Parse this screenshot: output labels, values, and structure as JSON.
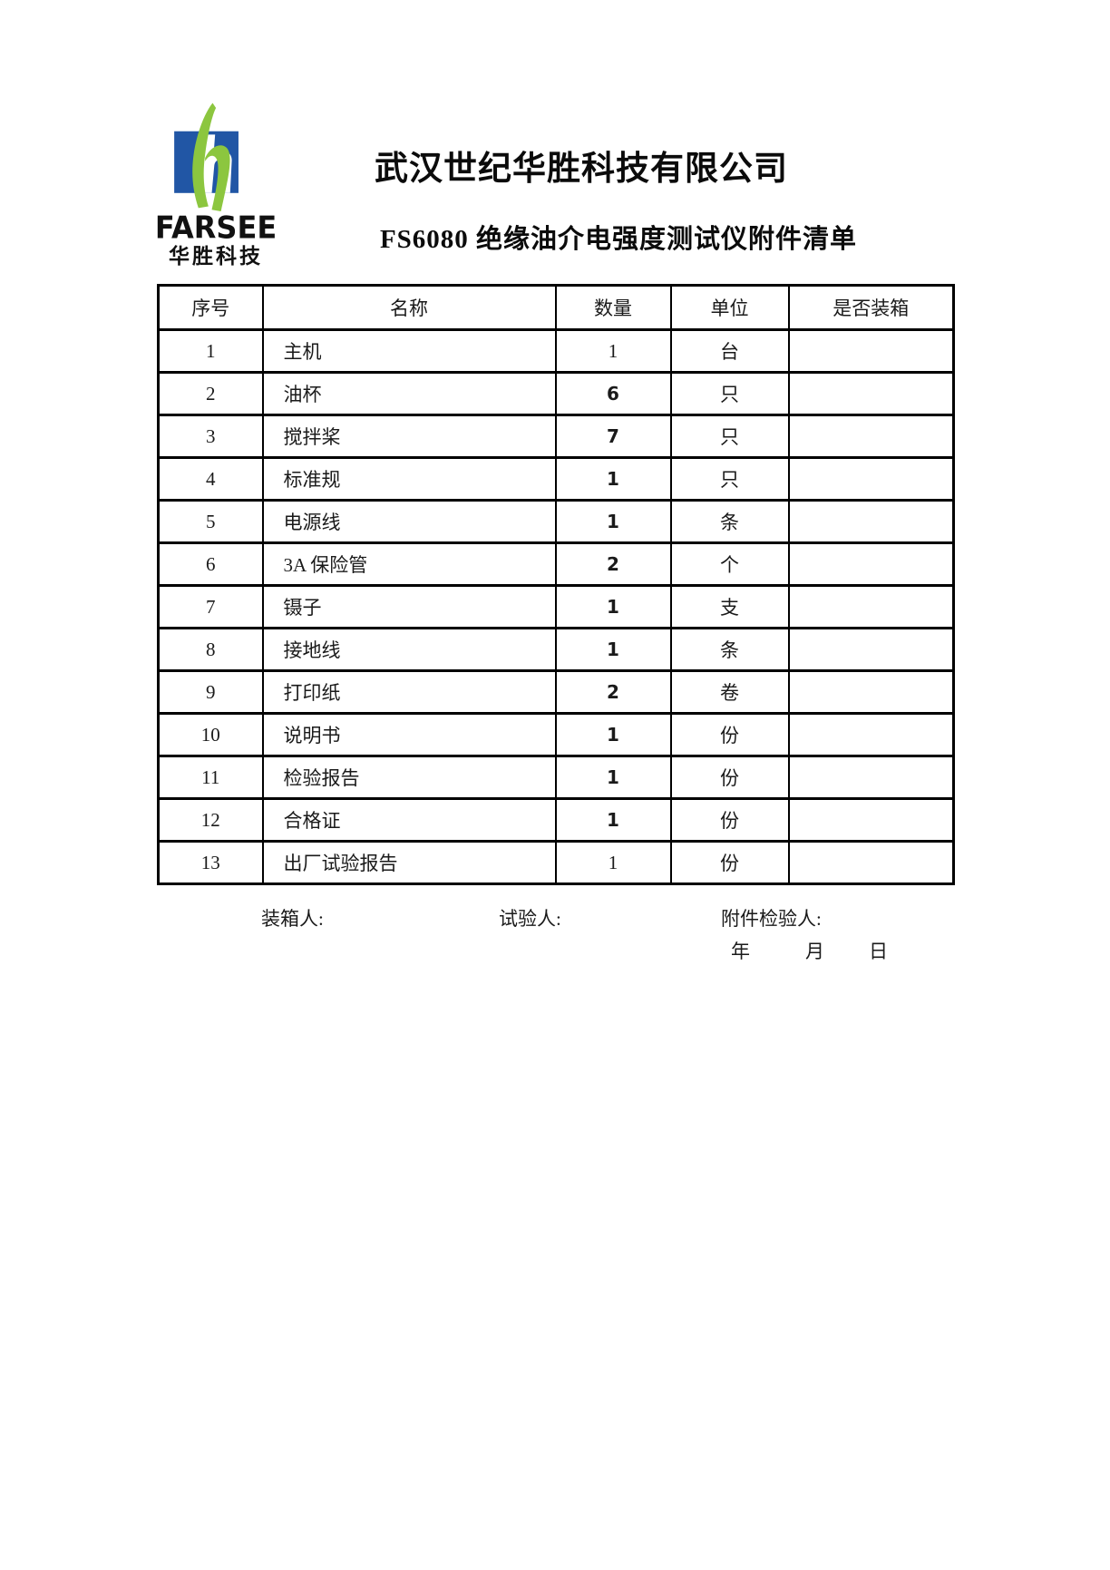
{
  "logo": {
    "brand_en": "FARSEE",
    "brand_cn": "华胜科技",
    "colors": {
      "blue": "#2156a5",
      "green": "#8cc63f"
    }
  },
  "header": {
    "company_title": "武汉世纪华胜科技有限公司",
    "doc_title": "FS6080 绝缘油介电强度测试仪附件清单"
  },
  "table": {
    "columns": [
      "序号",
      "名称",
      "数量",
      "单位",
      "是否装箱"
    ],
    "rows": [
      {
        "no": "1",
        "name": "主机",
        "qty": "1",
        "unit": "台",
        "packed": "",
        "qty_bold": false
      },
      {
        "no": "2",
        "name": "油杯",
        "qty": "6",
        "unit": "只",
        "packed": "",
        "qty_bold": true
      },
      {
        "no": "3",
        "name": "搅拌桨",
        "qty": "7",
        "unit": "只",
        "packed": "",
        "qty_bold": true
      },
      {
        "no": "4",
        "name": "标准规",
        "qty": "1",
        "unit": "只",
        "packed": "",
        "qty_bold": true
      },
      {
        "no": "5",
        "name": "电源线",
        "qty": "1",
        "unit": "条",
        "packed": "",
        "qty_bold": true
      },
      {
        "no": "6",
        "name": "3A 保险管",
        "qty": "2",
        "unit": "个",
        "packed": "",
        "qty_bold": true
      },
      {
        "no": "7",
        "name": "镊子",
        "qty": "1",
        "unit": "支",
        "packed": "",
        "qty_bold": true
      },
      {
        "no": "8",
        "name": "接地线",
        "qty": "1",
        "unit": "条",
        "packed": "",
        "qty_bold": true
      },
      {
        "no": "9",
        "name": "打印纸",
        "qty": "2",
        "unit": "卷",
        "packed": "",
        "qty_bold": true
      },
      {
        "no": "10",
        "name": "说明书",
        "qty": "1",
        "unit": "份",
        "packed": "",
        "qty_bold": true
      },
      {
        "no": "11",
        "name": "检验报告",
        "qty": "1",
        "unit": "份",
        "packed": "",
        "qty_bold": true
      },
      {
        "no": "12",
        "name": "合格证",
        "qty": "1",
        "unit": "份",
        "packed": "",
        "qty_bold": true
      },
      {
        "no": "13",
        "name": "出厂试验报告",
        "qty": "1",
        "unit": "份",
        "packed": "",
        "qty_bold": false
      }
    ]
  },
  "footer": {
    "packer_label": "装箱人:",
    "tester_label": "试验人:",
    "inspector_label": "附件检验人:",
    "date_year": "年",
    "date_month": "月",
    "date_day": "日"
  }
}
